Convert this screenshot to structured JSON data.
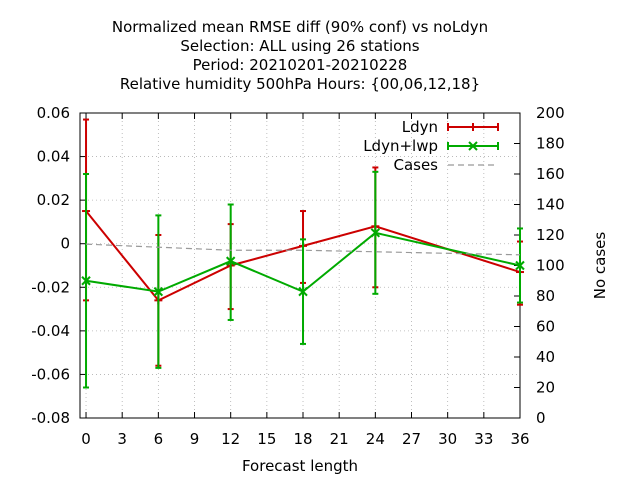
{
  "chart_data": {
    "type": "line",
    "title_lines": [
      "Normalized mean RMSE diff (90% conf) vs noLdyn",
      "Selection: ALL using    26 stations",
      "Period: 20210201-20210228",
      "Relative humidity 500hPa   Hours: {00,06,12,18}"
    ],
    "xlabel": "Forecast length",
    "ylabel": "",
    "y2label": "No cases",
    "xlim": [
      -0.5,
      36
    ],
    "ylim": [
      -0.08,
      0.06
    ],
    "y2lim": [
      0,
      200
    ],
    "xticks": [
      0,
      3,
      6,
      9,
      12,
      15,
      18,
      21,
      24,
      27,
      30,
      33,
      36
    ],
    "yticks": [
      -0.08,
      -0.06,
      -0.04,
      -0.02,
      0,
      0.02,
      0.04,
      0.06
    ],
    "ytick_labels": [
      "-0.08",
      "-0.06",
      "-0.04",
      "-0.02",
      "0",
      "0.02",
      "0.04",
      "0.06"
    ],
    "y2ticks": [
      0,
      20,
      40,
      60,
      80,
      100,
      120,
      140,
      160,
      180,
      200
    ],
    "grid": true,
    "legend_position": "top-right",
    "series": [
      {
        "name": "Ldyn",
        "color": "#cc0000",
        "marker": "plus",
        "axis": "y",
        "x": [
          0,
          6,
          12,
          18,
          24,
          36
        ],
        "y": [
          0.015,
          -0.026,
          -0.01,
          -0.001,
          0.008,
          -0.013
        ],
        "err_low": [
          -0.026,
          -0.056,
          -0.03,
          -0.018,
          -0.02,
          -0.028
        ],
        "err_high": [
          0.057,
          0.004,
          0.009,
          0.015,
          0.035,
          0.001
        ]
      },
      {
        "name": "Ldyn+lwp",
        "color": "#00aa00",
        "marker": "x",
        "axis": "y",
        "x": [
          0,
          6,
          12,
          18,
          24,
          36
        ],
        "y": [
          -0.017,
          -0.022,
          -0.008,
          -0.022,
          0.005,
          -0.01
        ],
        "err_low": [
          -0.066,
          -0.057,
          -0.035,
          -0.046,
          -0.023,
          -0.027
        ],
        "err_high": [
          0.032,
          0.013,
          0.018,
          0.002,
          0.033,
          0.007
        ]
      },
      {
        "name": "Cases",
        "color": "#999999",
        "marker": "none",
        "dashed": true,
        "axis": "y2",
        "x": [
          0,
          6,
          12,
          18,
          24,
          36
        ],
        "y": [
          114,
          112,
          110,
          110,
          109,
          107
        ]
      }
    ]
  }
}
